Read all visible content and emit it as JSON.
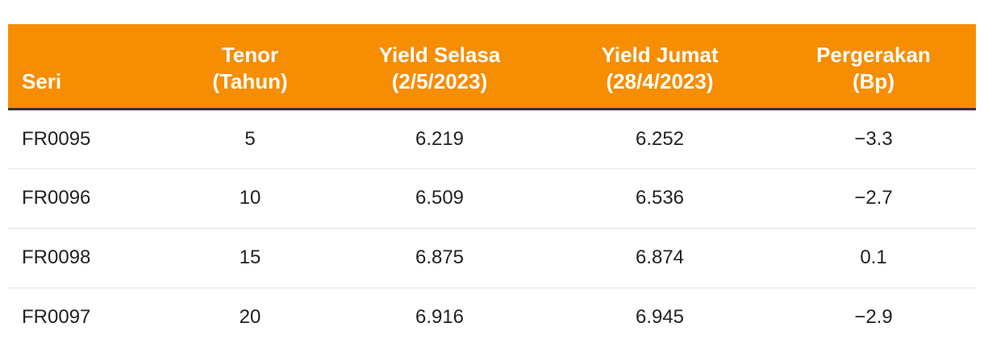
{
  "table": {
    "header": [
      [
        "Seri"
      ],
      [
        "Tenor",
        "(Tahun)"
      ],
      [
        "Yield Selasa",
        "(2/5/2023)"
      ],
      [
        "Yield Jumat",
        "(28/4/2023)"
      ],
      [
        "Pergerakan",
        "(Bp)"
      ]
    ],
    "rows": [
      [
        "FR0095",
        "5",
        "6.219",
        "6.252",
        "−3.3"
      ],
      [
        "FR0096",
        "10",
        "6.509",
        "6.536",
        "−2.7"
      ],
      [
        "FR0098",
        "15",
        "6.875",
        "6.874",
        "0.1"
      ],
      [
        "FR0097",
        "20",
        "6.916",
        "6.945",
        "−2.9"
      ]
    ]
  }
}
